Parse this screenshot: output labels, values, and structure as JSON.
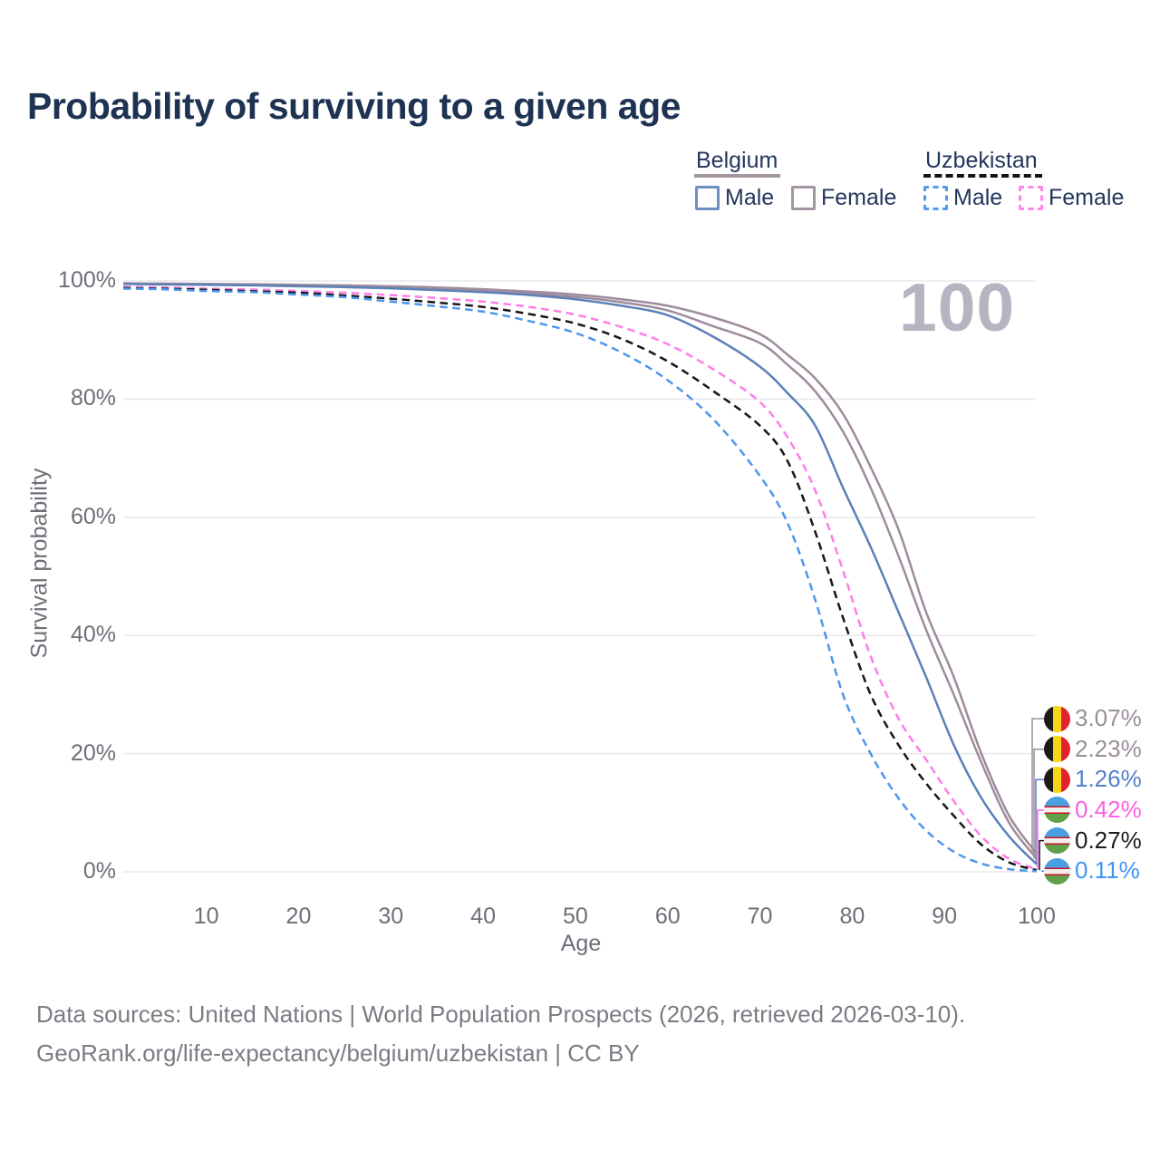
{
  "title": "Probability of surviving to a given age",
  "watermark": "100",
  "legend": {
    "belgium": {
      "label": "Belgium",
      "male": "Male",
      "female": "Female"
    },
    "uzbekistan": {
      "label": "Uzbekistan",
      "male": "Male",
      "female": "Female"
    }
  },
  "axes": {
    "y_label": "Survival probability",
    "x_label": "Age",
    "y_ticks": [
      "100%",
      "80%",
      "60%",
      "40%",
      "20%",
      "0%"
    ],
    "x_ticks": [
      "10",
      "20",
      "30",
      "40",
      "50",
      "60",
      "70",
      "80",
      "90",
      "100"
    ]
  },
  "footer": {
    "line1": "Data sources: United Nations | World Population Prospects (2026, retrieved 2026-03-10).",
    "line2": "GeoRank.org/life-expectancy/belgium/uzbekistan | CC BY"
  },
  "colors": {
    "title_text": "#1e3252",
    "legend_text": "#24365c",
    "axis_text": "#6e6e78",
    "gridline": "#e9e9ee",
    "watermark": "#b5b5c1",
    "belgium_solid": "#9e8c9c",
    "belgium_male_blue": "#5b81b8",
    "uzbekistan_pink": "#ff7de9",
    "uzbekistan_black": "#161616",
    "uzbekistan_blue": "#4d97ec"
  },
  "chart_data": {
    "type": "line",
    "title": "Probability of surviving to a given age",
    "xlabel": "Age",
    "ylabel": "Survival probability",
    "xlim": [
      1,
      100
    ],
    "ylim": [
      0,
      100
    ],
    "grid": "horizontal-only",
    "highlighted_age": "100",
    "legend_position": "top-right",
    "x": [
      1,
      5,
      10,
      15,
      20,
      25,
      30,
      35,
      40,
      45,
      50,
      55,
      60,
      65,
      70,
      73,
      76,
      79,
      82,
      85,
      88,
      91,
      94,
      97,
      100
    ],
    "series": [
      {
        "name": "Belgium Female",
        "country": "Belgium",
        "sex": "Female",
        "line": "solid",
        "color": "#9e8c9c",
        "end_label": "3.07%",
        "label_color": "#9b8e9b",
        "flag": "belgium",
        "values": [
          99.6,
          99.55,
          99.5,
          99.45,
          99.35,
          99.25,
          99.1,
          98.9,
          98.6,
          98.2,
          97.7,
          96.9,
          95.8,
          93.8,
          91.0,
          87.5,
          83.5,
          77.5,
          68.5,
          58.0,
          44.0,
          33.0,
          20.0,
          9.5,
          3.07
        ]
      },
      {
        "name": "Belgium Both sexes",
        "country": "Belgium",
        "sex": "Both",
        "line": "solid",
        "color": "#9e8c9c",
        "end_label": "2.23%",
        "label_color": "#9b8e9b",
        "flag": "belgium",
        "values": [
          99.5,
          99.45,
          99.4,
          99.3,
          99.2,
          99.05,
          98.9,
          98.65,
          98.3,
          97.9,
          97.3,
          96.4,
          95.0,
          92.3,
          89.5,
          85.8,
          81.3,
          74.5,
          65.0,
          53.5,
          41.0,
          30.0,
          18.5,
          8.3,
          2.23
        ]
      },
      {
        "name": "Belgium Male",
        "country": "Belgium",
        "sex": "Male",
        "line": "solid",
        "color": "#5b81b8",
        "end_label": "1.26%",
        "label_color": "#5580c8",
        "flag": "belgium",
        "values": [
          99.5,
          99.4,
          99.35,
          99.25,
          99.1,
          98.95,
          98.75,
          98.45,
          98.1,
          97.6,
          96.9,
          95.8,
          94.2,
          90.5,
          85.5,
          81.0,
          75.5,
          65.0,
          55.0,
          44.0,
          33.0,
          21.5,
          12.5,
          6.0,
          1.26
        ]
      },
      {
        "name": "Uzbekistan Female",
        "country": "Uzbekistan",
        "sex": "Female",
        "line": "dashed",
        "color": "#ff7de9",
        "end_label": "0.42%",
        "label_color": "#ff5fe2",
        "flag": "uzbekistan",
        "values": [
          99.0,
          98.9,
          98.7,
          98.55,
          98.3,
          98.0,
          97.6,
          97.1,
          96.5,
          95.6,
          94.3,
          92.2,
          89.3,
          85.0,
          79.5,
          73.5,
          64.5,
          51.0,
          36.5,
          26.0,
          19.0,
          12.0,
          6.0,
          2.2,
          0.42
        ]
      },
      {
        "name": "Uzbekistan Both sexes",
        "country": "Uzbekistan",
        "sex": "Both",
        "line": "dashed",
        "color": "#161616",
        "end_label": "0.27%",
        "label_color": "#1c1c1c",
        "flag": "uzbekistan",
        "values": [
          98.8,
          98.7,
          98.5,
          98.25,
          98.0,
          97.55,
          97.0,
          96.35,
          95.6,
          94.4,
          92.8,
          90.2,
          86.4,
          81.3,
          75.5,
          69.5,
          57.5,
          43.0,
          30.0,
          21.5,
          15.0,
          9.5,
          4.6,
          1.6,
          0.27
        ]
      },
      {
        "name": "Uzbekistan Male",
        "country": "Uzbekistan",
        "sex": "Male",
        "line": "dashed",
        "color": "#4d97ec",
        "end_label": "0.11%",
        "label_color": "#3d96f5",
        "flag": "uzbekistan",
        "values": [
          98.7,
          98.6,
          98.3,
          98.1,
          97.7,
          97.25,
          96.5,
          95.7,
          94.8,
          93.2,
          91.2,
          87.9,
          83.2,
          76.5,
          67.0,
          59.0,
          46.0,
          30.0,
          20.0,
          12.5,
          7.0,
          3.4,
          1.4,
          0.45,
          0.11
        ]
      }
    ]
  }
}
